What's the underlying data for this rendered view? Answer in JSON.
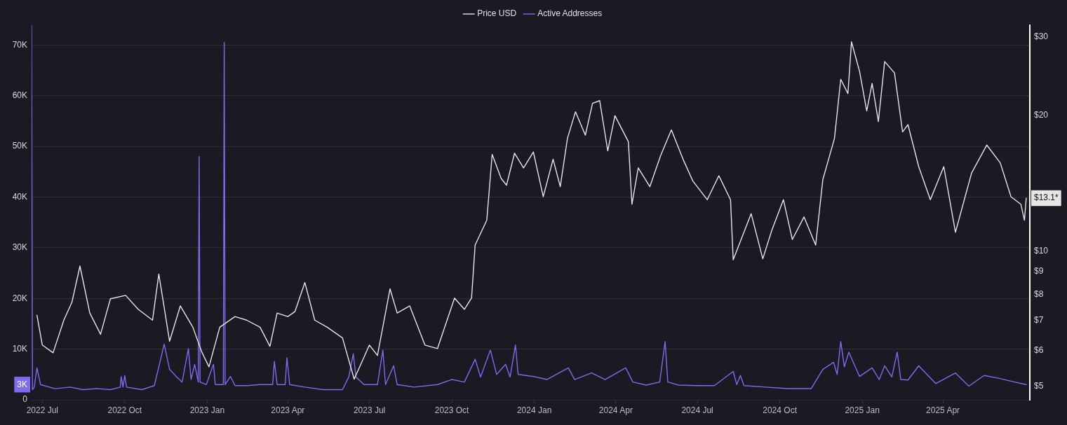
{
  "chart_data": {
    "type": "line",
    "xlim": [
      "2022-06-19",
      "2025-07-07"
    ],
    "xticks": [
      {
        "value": "2022-07-01",
        "label": "2022 Jul"
      },
      {
        "value": "2022-10-01",
        "label": "2022 Oct"
      },
      {
        "value": "2023-01-01",
        "label": "2023 Jan"
      },
      {
        "value": "2023-04-01",
        "label": "2023 Apr"
      },
      {
        "value": "2023-07-01",
        "label": "2023 Jul"
      },
      {
        "value": "2023-10-01",
        "label": "2023 Oct"
      },
      {
        "value": "2024-01-01",
        "label": "2024 Jan"
      },
      {
        "value": "2024-04-01",
        "label": "2024 Apr"
      },
      {
        "value": "2024-07-01",
        "label": "2024 Jul"
      },
      {
        "value": "2024-10-01",
        "label": "2024 Oct"
      },
      {
        "value": "2025-01-01",
        "label": "2025 Jan"
      },
      {
        "value": "2025-04-01",
        "label": "2025 Apr"
      }
    ],
    "ylim": [
      0,
      73900
    ],
    "yticks": [
      0,
      {
        "value": 3000,
        "label": "3K"
      },
      {
        "value": 10000,
        "label": "10K"
      },
      {
        "value": 20000,
        "label": "20K"
      },
      {
        "value": 30000,
        "label": "30K"
      },
      {
        "value": 40000,
        "label": "40K"
      },
      {
        "value": 50000,
        "label": "50K"
      },
      {
        "value": 60000,
        "label": "60K"
      },
      {
        "value": 70000,
        "label": "70K"
      }
    ],
    "y2lim": [
      4.66,
      31.8
    ],
    "y2ticks": [
      {
        "value": 5,
        "label": "$5"
      },
      {
        "value": 6,
        "label": "$6"
      },
      {
        "value": 7,
        "label": "$7"
      },
      {
        "value": 8,
        "label": "$8"
      },
      {
        "value": 9,
        "label": "$9"
      },
      {
        "value": 10,
        "label": "$10"
      },
      {
        "value": 13.1,
        "label": "$13.1*"
      },
      {
        "value": 20,
        "label": "$20"
      },
      {
        "value": 30,
        "label": "$30"
      }
    ],
    "log": "y2",
    "grid": "y",
    "legend": "top",
    "marker": "none",
    "line_style": "solid",
    "series": [
      {
        "name": "Price USD",
        "color": "#e6e6e6",
        "axis": "y2",
        "x": [
          "2022-06-25",
          "2022-07-01",
          "2022-07-13",
          "2022-07-25",
          "2022-08-03",
          "2022-08-12",
          "2022-08-23",
          "2022-09-04",
          "2022-09-15",
          "2022-10-02",
          "2022-10-16",
          "2022-11-01",
          "2022-11-08",
          "2022-11-20",
          "2022-12-02",
          "2022-12-16",
          "2022-12-26",
          "2023-01-03",
          "2023-01-15",
          "2023-02-01",
          "2023-02-14",
          "2023-03-01",
          "2023-03-12",
          "2023-03-20",
          "2023-04-01",
          "2023-04-09",
          "2023-04-20",
          "2023-05-01",
          "2023-05-15",
          "2023-06-01",
          "2023-06-14",
          "2023-07-01",
          "2023-07-10",
          "2023-07-24",
          "2023-08-01",
          "2023-08-15",
          "2023-09-01",
          "2023-09-15",
          "2023-10-04",
          "2023-10-15",
          "2023-10-23",
          "2023-10-27",
          "2023-11-09",
          "2023-11-15",
          "2023-11-25",
          "2023-12-01",
          "2023-12-10",
          "2023-12-20",
          "2023-12-31",
          "2024-01-11",
          "2024-01-22",
          "2024-01-30",
          "2024-02-07",
          "2024-02-16",
          "2024-02-27",
          "2024-03-06",
          "2024-03-14",
          "2024-03-23",
          "2024-03-31",
          "2024-04-15",
          "2024-04-19",
          "2024-04-26",
          "2024-05-09",
          "2024-05-21",
          "2024-06-02",
          "2024-06-15",
          "2024-06-26",
          "2024-07-12",
          "2024-07-25",
          "2024-08-07",
          "2024-08-10",
          "2024-08-30",
          "2024-09-12",
          "2024-09-22",
          "2024-10-05",
          "2024-10-15",
          "2024-10-28",
          "2024-11-10",
          "2024-11-18",
          "2024-12-01",
          "2024-12-08",
          "2024-12-16",
          "2024-12-20",
          "2024-12-29",
          "2025-01-06",
          "2025-01-12",
          "2025-01-19",
          "2025-01-26",
          "2025-02-06",
          "2025-02-15",
          "2025-02-21",
          "2025-03-05",
          "2025-03-18",
          "2025-04-02",
          "2025-04-15",
          "2025-05-03",
          "2025-05-20",
          "2025-06-04",
          "2025-06-16",
          "2025-06-27",
          "2025-07-01",
          "2025-07-03"
        ],
        "values": [
          7.19,
          6.17,
          5.93,
          7.01,
          7.68,
          9.25,
          7.27,
          6.52,
          7.82,
          7.96,
          7.41,
          7.01,
          8.88,
          6.29,
          7.54,
          6.76,
          5.95,
          5.52,
          6.76,
          7.14,
          7.01,
          6.76,
          6.13,
          7.27,
          7.14,
          7.33,
          8.5,
          7.01,
          6.76,
          6.4,
          5.18,
          6.17,
          5.85,
          8.23,
          7.27,
          7.54,
          6.17,
          6.06,
          7.85,
          7.41,
          7.85,
          10.3,
          11.7,
          16.4,
          14.5,
          14.0,
          16.5,
          15.3,
          16.6,
          13.2,
          16.0,
          13.9,
          17.8,
          20.4,
          18.1,
          21.3,
          21.6,
          16.7,
          20.0,
          17.5,
          12.7,
          15.3,
          13.9,
          16.3,
          18.6,
          16.0,
          14.3,
          13.0,
          14.7,
          13.0,
          9.55,
          12.1,
          9.6,
          11.1,
          13.0,
          10.6,
          11.9,
          10.3,
          14.4,
          17.8,
          24.1,
          22.4,
          29.2,
          25.1,
          20.5,
          23.6,
          19.4,
          26.4,
          24.9,
          18.4,
          19.1,
          15.4,
          13.0,
          15.4,
          11.0,
          14.9,
          17.2,
          15.7,
          13.2,
          12.7,
          11.7,
          13.1
        ]
      },
      {
        "name": "Active Addresses",
        "color": "#7b6cf0",
        "x": [
          "2022-06-19",
          "2022-06-20",
          "2022-06-22",
          "2022-06-25",
          "2022-06-29",
          "2022-07-15",
          "2022-08-01",
          "2022-08-15",
          "2022-09-01",
          "2022-09-15",
          "2022-09-26",
          "2022-09-27",
          "2022-09-29",
          "2022-10-01",
          "2022-10-03",
          "2022-10-20",
          "2022-11-03",
          "2022-11-10",
          "2022-11-14",
          "2022-11-20",
          "2022-11-28",
          "2022-12-04",
          "2022-12-11",
          "2022-12-14",
          "2022-12-18",
          "2022-12-22",
          "2022-12-23",
          "2022-12-24",
          "2022-12-31",
          "2023-01-08",
          "2023-01-10",
          "2023-01-19",
          "2023-01-20",
          "2023-01-21",
          "2023-01-27",
          "2023-02-01",
          "2023-02-15",
          "2023-03-01",
          "2023-03-15",
          "2023-03-17",
          "2023-03-20",
          "2023-03-29",
          "2023-03-31",
          "2023-04-03",
          "2023-04-20",
          "2023-05-10",
          "2023-06-01",
          "2023-06-08",
          "2023-06-13",
          "2023-06-16",
          "2023-06-25",
          "2023-07-10",
          "2023-07-16",
          "2023-07-19",
          "2023-07-28",
          "2023-08-01",
          "2023-08-20",
          "2023-09-15",
          "2023-10-01",
          "2023-10-15",
          "2023-10-27",
          "2023-11-02",
          "2023-11-13",
          "2023-11-20",
          "2023-11-30",
          "2023-12-05",
          "2023-12-11",
          "2023-12-14",
          "2023-12-31",
          "2024-01-15",
          "2024-02-08",
          "2024-02-15",
          "2024-03-05",
          "2024-03-20",
          "2024-04-12",
          "2024-04-20",
          "2024-05-05",
          "2024-05-20",
          "2024-05-26",
          "2024-05-29",
          "2024-06-10",
          "2024-07-01",
          "2024-07-20",
          "2024-08-10",
          "2024-08-14",
          "2024-08-18",
          "2024-08-22",
          "2024-09-15",
          "2024-10-10",
          "2024-11-05",
          "2024-11-18",
          "2024-11-30",
          "2024-12-04",
          "2024-12-08",
          "2024-12-12",
          "2024-12-17",
          "2024-12-29",
          "2025-01-12",
          "2025-01-20",
          "2025-01-26",
          "2025-02-03",
          "2025-02-09",
          "2025-02-13",
          "2025-02-21",
          "2025-03-05",
          "2025-03-24",
          "2025-04-15",
          "2025-04-30",
          "2025-05-17",
          "2025-06-01",
          "2025-06-20",
          "2025-07-03"
        ],
        "values": [
          73900,
          2000,
          2500,
          6300,
          3000,
          2200,
          2500,
          2000,
          2200,
          2000,
          2500,
          4600,
          2500,
          4800,
          2500,
          2000,
          2800,
          8000,
          11000,
          6000,
          4500,
          3500,
          10100,
          4000,
          7000,
          3500,
          48000,
          3500,
          3000,
          7000,
          3000,
          3000,
          70500,
          3000,
          4600,
          2800,
          2800,
          3000,
          3000,
          7600,
          3000,
          3000,
          8300,
          3000,
          2500,
          2000,
          2000,
          4500,
          9100,
          4500,
          3000,
          3000,
          9800,
          3000,
          6700,
          3000,
          2500,
          3000,
          4000,
          3500,
          8000,
          4500,
          9800,
          5000,
          7000,
          4500,
          10800,
          5000,
          4600,
          4000,
          6300,
          4000,
          5300,
          4000,
          6300,
          3500,
          2900,
          3500,
          11500,
          3500,
          2900,
          2800,
          2800,
          5600,
          3000,
          4800,
          2800,
          2500,
          2200,
          2200,
          6000,
          7400,
          5000,
          11500,
          6500,
          9400,
          4600,
          6300,
          4000,
          6700,
          4500,
          9400,
          4000,
          3900,
          6700,
          3200,
          5300,
          2700,
          4800,
          4300,
          3500,
          3000
        ]
      }
    ]
  }
}
